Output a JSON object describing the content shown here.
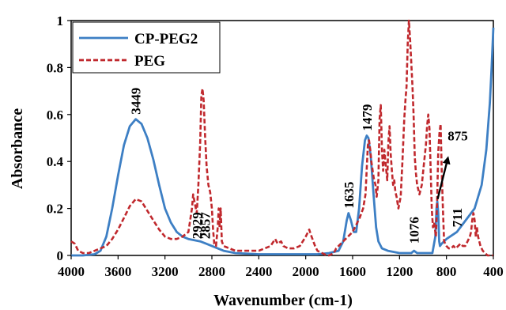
{
  "chart_data": {
    "type": "line",
    "title": "",
    "xlabel": "Wavenumber (cm-1)",
    "ylabel": "Absorbance",
    "xlim": [
      4000,
      400
    ],
    "ylim": [
      0,
      1
    ],
    "x_reversed": true,
    "x_ticks": [
      4000,
      3600,
      3200,
      2800,
      2400,
      2000,
      1600,
      1200,
      800,
      400
    ],
    "x_tick_labels": [
      "4000",
      "3600",
      "3200",
      "2800",
      "2400",
      "2000",
      "1600",
      "1200",
      "800",
      "400"
    ],
    "y_ticks": [
      0,
      0.2,
      0.4,
      0.6,
      0.8,
      1
    ],
    "y_tick_labels": [
      "0",
      "0.2",
      "0.4",
      "0.6",
      "0.8",
      "1"
    ],
    "grid": false,
    "legend_position": "top-left",
    "series": [
      {
        "name": "CP-PEG2",
        "color": "#3d7fc4",
        "line_style": "solid",
        "points": [
          [
            4000,
            0.0
          ],
          [
            3900,
            0.0
          ],
          [
            3800,
            0.005
          ],
          [
            3750,
            0.02
          ],
          [
            3700,
            0.08
          ],
          [
            3650,
            0.2
          ],
          [
            3600,
            0.34
          ],
          [
            3550,
            0.47
          ],
          [
            3500,
            0.55
          ],
          [
            3449,
            0.58
          ],
          [
            3400,
            0.56
          ],
          [
            3350,
            0.5
          ],
          [
            3300,
            0.41
          ],
          [
            3250,
            0.3
          ],
          [
            3200,
            0.2
          ],
          [
            3150,
            0.14
          ],
          [
            3100,
            0.1
          ],
          [
            3050,
            0.08
          ],
          [
            3000,
            0.07
          ],
          [
            2950,
            0.065
          ],
          [
            2900,
            0.06
          ],
          [
            2850,
            0.05
          ],
          [
            2800,
            0.04
          ],
          [
            2750,
            0.03
          ],
          [
            2700,
            0.02
          ],
          [
            2600,
            0.01
          ],
          [
            2400,
            0.005
          ],
          [
            2200,
            0.005
          ],
          [
            2000,
            0.005
          ],
          [
            1900,
            0.005
          ],
          [
            1800,
            0.01
          ],
          [
            1720,
            0.02
          ],
          [
            1680,
            0.06
          ],
          [
            1650,
            0.15
          ],
          [
            1635,
            0.18
          ],
          [
            1615,
            0.15
          ],
          [
            1590,
            0.1
          ],
          [
            1570,
            0.1
          ],
          [
            1545,
            0.2
          ],
          [
            1520,
            0.38
          ],
          [
            1495,
            0.49
          ],
          [
            1479,
            0.51
          ],
          [
            1465,
            0.5
          ],
          [
            1445,
            0.42
          ],
          [
            1420,
            0.25
          ],
          [
            1400,
            0.12
          ],
          [
            1380,
            0.06
          ],
          [
            1350,
            0.03
          ],
          [
            1300,
            0.02
          ],
          [
            1200,
            0.01
          ],
          [
            1100,
            0.01
          ],
          [
            1076,
            0.02
          ],
          [
            1050,
            0.01
          ],
          [
            980,
            0.01
          ],
          [
            920,
            0.01
          ],
          [
            895,
            0.08
          ],
          [
            885,
            0.2
          ],
          [
            878,
            0.23
          ],
          [
            870,
            0.18
          ],
          [
            862,
            0.06
          ],
          [
            855,
            0.04
          ],
          [
            840,
            0.05
          ],
          [
            800,
            0.07
          ],
          [
            711,
            0.1
          ],
          [
            650,
            0.14
          ],
          [
            560,
            0.2
          ],
          [
            500,
            0.3
          ],
          [
            460,
            0.45
          ],
          [
            430,
            0.65
          ],
          [
            415,
            0.8
          ],
          [
            400,
            0.97
          ]
        ]
      },
      {
        "name": "PEG",
        "color": "#c0282d",
        "line_style": "dashed",
        "points": [
          [
            4000,
            0.06
          ],
          [
            3970,
            0.05
          ],
          [
            3940,
            0.02
          ],
          [
            3900,
            0.01
          ],
          [
            3850,
            0.01
          ],
          [
            3800,
            0.02
          ],
          [
            3750,
            0.03
          ],
          [
            3700,
            0.04
          ],
          [
            3650,
            0.07
          ],
          [
            3600,
            0.11
          ],
          [
            3550,
            0.16
          ],
          [
            3500,
            0.21
          ],
          [
            3449,
            0.24
          ],
          [
            3400,
            0.23
          ],
          [
            3350,
            0.19
          ],
          [
            3300,
            0.15
          ],
          [
            3250,
            0.11
          ],
          [
            3200,
            0.08
          ],
          [
            3150,
            0.07
          ],
          [
            3100,
            0.07
          ],
          [
            3050,
            0.08
          ],
          [
            3000,
            0.1
          ],
          [
            2970,
            0.2
          ],
          [
            2960,
            0.26
          ],
          [
            2945,
            0.22
          ],
          [
            2929,
            0.18
          ],
          [
            2915,
            0.3
          ],
          [
            2900,
            0.48
          ],
          [
            2890,
            0.68
          ],
          [
            2880,
            0.71
          ],
          [
            2870,
            0.66
          ],
          [
            2857,
            0.5
          ],
          [
            2845,
            0.38
          ],
          [
            2830,
            0.3
          ],
          [
            2815,
            0.27
          ],
          [
            2800,
            0.2
          ],
          [
            2790,
            0.11
          ],
          [
            2780,
            0.05
          ],
          [
            2765,
            0.04
          ],
          [
            2750,
            0.12
          ],
          [
            2742,
            0.2
          ],
          [
            2735,
            0.12
          ],
          [
            2725,
            0.2
          ],
          [
            2715,
            0.06
          ],
          [
            2700,
            0.04
          ],
          [
            2650,
            0.03
          ],
          [
            2600,
            0.02
          ],
          [
            2500,
            0.02
          ],
          [
            2400,
            0.02
          ],
          [
            2300,
            0.04
          ],
          [
            2260,
            0.07
          ],
          [
            2240,
            0.05
          ],
          [
            2210,
            0.06
          ],
          [
            2190,
            0.04
          ],
          [
            2150,
            0.03
          ],
          [
            2100,
            0.03
          ],
          [
            2050,
            0.04
          ],
          [
            2000,
            0.08
          ],
          [
            1970,
            0.11
          ],
          [
            1950,
            0.08
          ],
          [
            1920,
            0.04
          ],
          [
            1900,
            0.02
          ],
          [
            1860,
            0.01
          ],
          [
            1820,
            0.0
          ],
          [
            1800,
            0.0
          ],
          [
            1760,
            0.01
          ],
          [
            1740,
            0.03
          ],
          [
            1720,
            0.04
          ],
          [
            1700,
            0.05
          ],
          [
            1680,
            0.06
          ],
          [
            1660,
            0.07
          ],
          [
            1640,
            0.08
          ],
          [
            1620,
            0.09
          ],
          [
            1600,
            0.1
          ],
          [
            1570,
            0.13
          ],
          [
            1540,
            0.16
          ],
          [
            1510,
            0.2
          ],
          [
            1490,
            0.26
          ],
          [
            1470,
            0.47
          ],
          [
            1460,
            0.49
          ],
          [
            1450,
            0.45
          ],
          [
            1440,
            0.4
          ],
          [
            1420,
            0.33
          ],
          [
            1405,
            0.3
          ],
          [
            1395,
            0.25
          ],
          [
            1380,
            0.32
          ],
          [
            1370,
            0.58
          ],
          [
            1360,
            0.64
          ],
          [
            1350,
            0.45
          ],
          [
            1340,
            0.36
          ],
          [
            1330,
            0.45
          ],
          [
            1320,
            0.4
          ],
          [
            1305,
            0.32
          ],
          [
            1295,
            0.48
          ],
          [
            1285,
            0.55
          ],
          [
            1275,
            0.43
          ],
          [
            1265,
            0.36
          ],
          [
            1255,
            0.3
          ],
          [
            1245,
            0.32
          ],
          [
            1235,
            0.27
          ],
          [
            1225,
            0.25
          ],
          [
            1210,
            0.2
          ],
          [
            1190,
            0.25
          ],
          [
            1175,
            0.4
          ],
          [
            1160,
            0.58
          ],
          [
            1150,
            0.66
          ],
          [
            1140,
            0.72
          ],
          [
            1130,
            0.9
          ],
          [
            1120,
            1.0
          ],
          [
            1110,
            0.92
          ],
          [
            1100,
            0.82
          ],
          [
            1090,
            0.72
          ],
          [
            1080,
            0.6
          ],
          [
            1070,
            0.42
          ],
          [
            1060,
            0.35
          ],
          [
            1050,
            0.3
          ],
          [
            1040,
            0.28
          ],
          [
            1030,
            0.26
          ],
          [
            1010,
            0.3
          ],
          [
            990,
            0.4
          ],
          [
            975,
            0.47
          ],
          [
            965,
            0.55
          ],
          [
            955,
            0.6
          ],
          [
            945,
            0.54
          ],
          [
            935,
            0.38
          ],
          [
            925,
            0.2
          ],
          [
            915,
            0.12
          ],
          [
            905,
            0.14
          ],
          [
            890,
            0.08
          ],
          [
            880,
            0.22
          ],
          [
            870,
            0.44
          ],
          [
            860,
            0.52
          ],
          [
            850,
            0.56
          ],
          [
            840,
            0.36
          ],
          [
            830,
            0.2
          ],
          [
            820,
            0.06
          ],
          [
            800,
            0.04
          ],
          [
            780,
            0.03
          ],
          [
            760,
            0.03
          ],
          [
            740,
            0.04
          ],
          [
            720,
            0.03
          ],
          [
            700,
            0.04
          ],
          [
            680,
            0.05
          ],
          [
            660,
            0.04
          ],
          [
            640,
            0.04
          ],
          [
            620,
            0.06
          ],
          [
            600,
            0.08
          ],
          [
            590,
            0.1
          ],
          [
            580,
            0.15
          ],
          [
            570,
            0.18
          ],
          [
            560,
            0.15
          ],
          [
            550,
            0.08
          ],
          [
            540,
            0.12
          ],
          [
            530,
            0.08
          ],
          [
            510,
            0.04
          ],
          [
            490,
            0.02
          ],
          [
            470,
            0.01
          ],
          [
            450,
            0.0
          ],
          [
            420,
            0.0
          ],
          [
            400,
            0.0
          ]
        ]
      }
    ],
    "annotations": [
      {
        "text": "3449",
        "x": 3449,
        "y": 0.6,
        "rotation": -90
      },
      {
        "text": "2929",
        "x": 2929,
        "y": 0.07,
        "rotation": -90
      },
      {
        "text": "2857",
        "x": 2857,
        "y": 0.07,
        "rotation": -90
      },
      {
        "text": "1635",
        "x": 1635,
        "y": 0.2,
        "rotation": -90
      },
      {
        "text": "1479",
        "x": 1479,
        "y": 0.53,
        "rotation": -90
      },
      {
        "text": "1076",
        "x": 1076,
        "y": 0.05,
        "rotation": -90
      },
      {
        "text": "711",
        "x": 711,
        "y": 0.12,
        "rotation": -90
      },
      {
        "text": "875",
        "x": 790,
        "y": 0.47,
        "rotation": 0
      }
    ],
    "arrow": {
      "from": [
        875,
        0.24
      ],
      "to": [
        790,
        0.41
      ]
    }
  }
}
